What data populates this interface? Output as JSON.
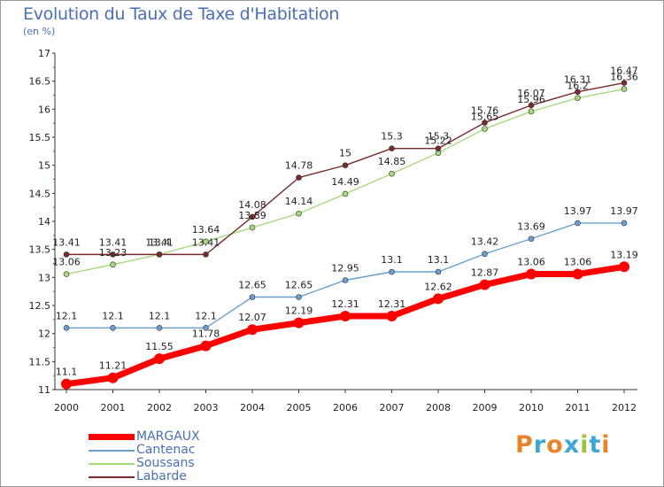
{
  "header": {
    "title": "Evolution du Taux de Taxe d'Habitation",
    "subtitle": "(en %)"
  },
  "logo": {
    "text": "Proxiti",
    "letters": [
      {
        "ch": "P",
        "color": "#e8842a"
      },
      {
        "ch": "r",
        "color": "#3fa7d6"
      },
      {
        "ch": "o",
        "color": "#e8842a"
      },
      {
        "ch": "x",
        "color": "#3fa7d6"
      },
      {
        "ch": "i",
        "color": "#9bc43c"
      },
      {
        "ch": "t",
        "color": "#3fa7d6"
      },
      {
        "ch": "i",
        "color": "#e8842a"
      }
    ]
  },
  "chart_data": {
    "type": "line",
    "title": "Evolution du Taux de Taxe d'Habitation",
    "ylabel": "(en %)",
    "xlabel": "",
    "x": [
      "2000",
      "2001",
      "2002",
      "2003",
      "2004",
      "2005",
      "2006",
      "2007",
      "2008",
      "2009",
      "2010",
      "2011",
      "2012"
    ],
    "ylim": [
      11,
      17
    ],
    "yticks": [
      "11",
      "11.5",
      "12",
      "12.5",
      "13",
      "13.5",
      "14",
      "14.5",
      "15",
      "15.5",
      "16",
      "16.5",
      "17"
    ],
    "grid": false,
    "legend_position": "bottom-left",
    "series": [
      {
        "name": "MARGAUX",
        "color": "#ff0000",
        "values": [
          11.1,
          11.21,
          11.55,
          11.78,
          12.07,
          12.19,
          12.31,
          12.31,
          12.62,
          12.87,
          13.06,
          13.06,
          13.19
        ],
        "labels": [
          "11.1",
          "11.21",
          "11.55",
          "11.78",
          "12.07",
          "12.19",
          "12.31",
          "12.31",
          "12.62",
          "12.87",
          "13.06",
          "13.06",
          "13.19"
        ]
      },
      {
        "name": "Cantenac",
        "color": "#6a9fd0",
        "values": [
          12.1,
          12.1,
          12.1,
          12.1,
          12.65,
          12.65,
          12.95,
          13.1,
          13.1,
          13.42,
          13.69,
          13.97,
          13.97
        ],
        "labels": [
          "12.1",
          "12.1",
          "12.1",
          "12.1",
          "12.65",
          "12.65",
          "12.95",
          "13.1",
          "13.1",
          "13.42",
          "13.69",
          "13.97",
          "13.97"
        ]
      },
      {
        "name": "Soussans",
        "color": "#a6d97a",
        "values": [
          13.06,
          13.23,
          13.41,
          13.64,
          13.89,
          14.14,
          14.49,
          14.85,
          15.22,
          15.65,
          15.96,
          16.2,
          16.36
        ],
        "labels": [
          "13.06",
          "13.23",
          "13.41",
          "13.64",
          "13.89",
          "14.14",
          "14.49",
          "14.85",
          "15.22",
          "15.65",
          "15.96",
          "16.2",
          "16.36"
        ]
      },
      {
        "name": "Labarde",
        "color": "#7a2a2a",
        "values": [
          13.41,
          13.41,
          13.41,
          13.41,
          14.08,
          14.78,
          15.0,
          15.3,
          15.3,
          15.76,
          16.07,
          16.31,
          16.47
        ],
        "labels": [
          "13.41",
          "13.41",
          "13.4",
          "13.41",
          "14.08",
          "14.78",
          "15",
          "15.3",
          "15.3",
          "15.76",
          "16.07",
          "16.31",
          "16.47"
        ]
      }
    ]
  }
}
